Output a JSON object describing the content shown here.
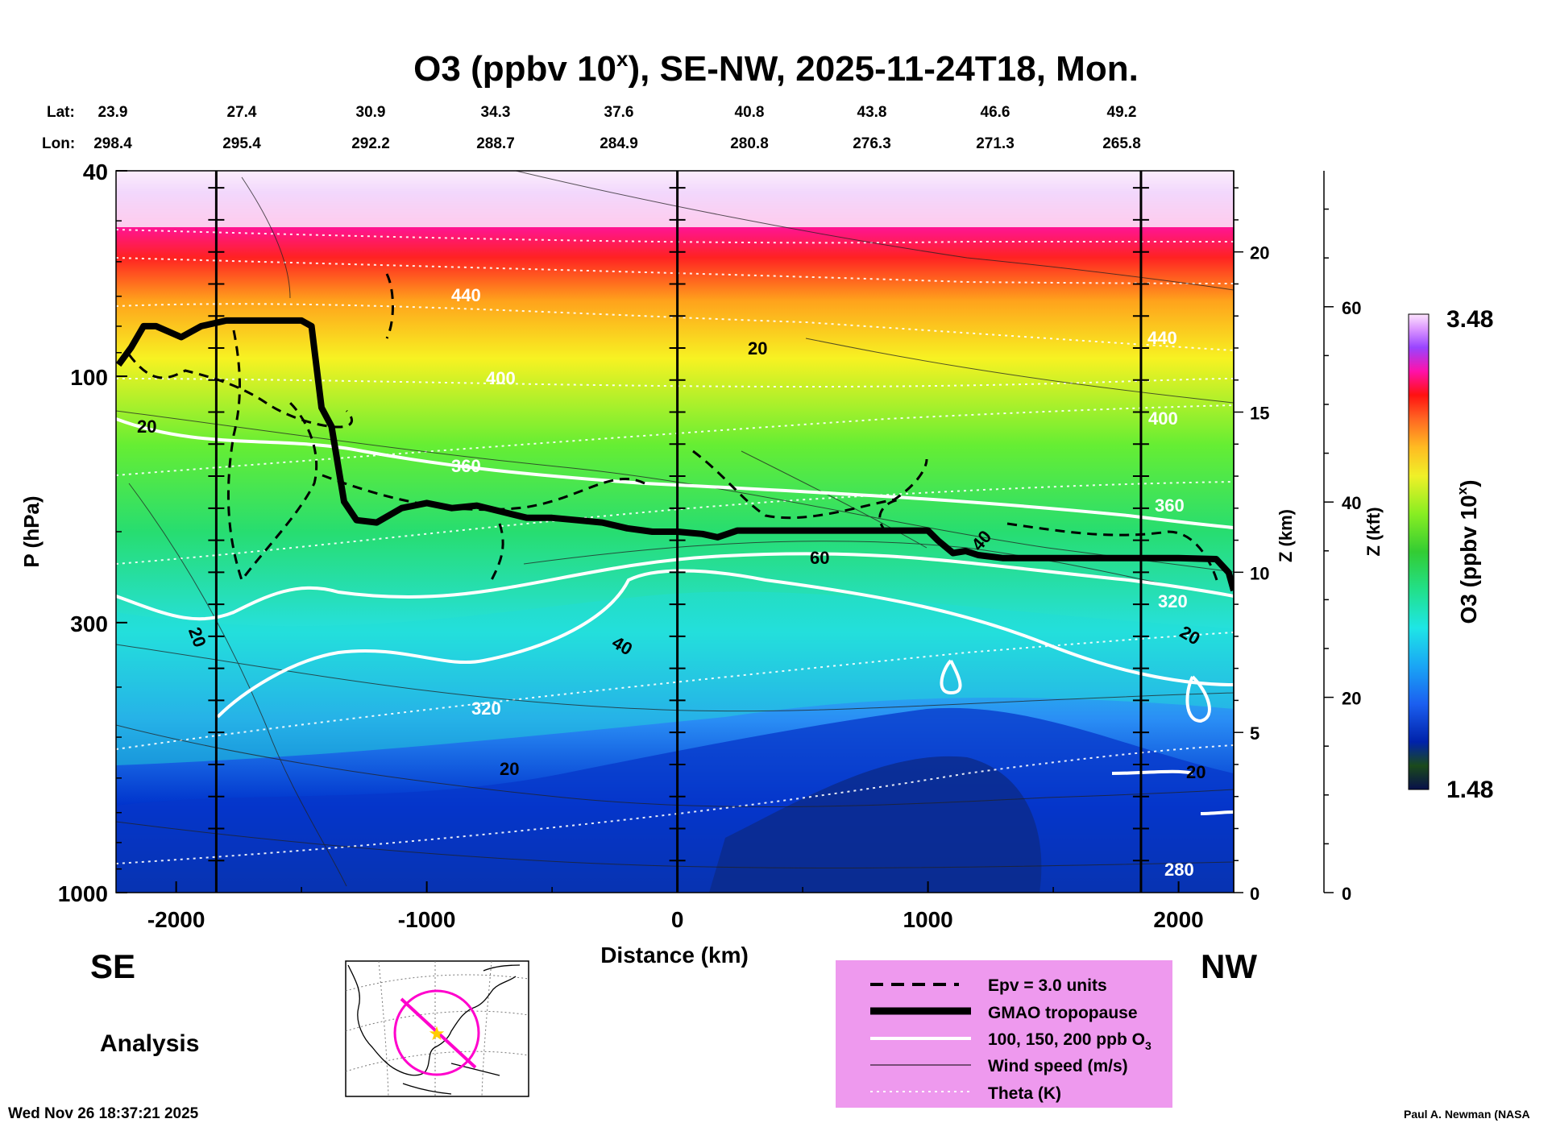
{
  "chart_data": {
    "type": "heatmap",
    "title": "O3 (ppbv 10",
    "title_sup": "x",
    "title_rest": "), SE-NW, 2025-11-24T18, Mon.",
    "lat_label": "Lat:",
    "lon_label": "Lon:",
    "lats": [
      "23.9",
      "27.4",
      "30.9",
      "34.3",
      "37.6",
      "40.8",
      "43.8",
      "46.6",
      "49.2"
    ],
    "lons": [
      "298.4",
      "295.4",
      "292.2",
      "288.7",
      "284.9",
      "280.8",
      "276.3",
      "271.3",
      "265.8"
    ],
    "xlabel": "Distance (km)",
    "ylabel": "P (hPa)",
    "x_ticks": [
      "-2000",
      "-1000",
      "0",
      "1000",
      "2000"
    ],
    "x_tick_values": [
      -2000,
      -1000,
      0,
      1000,
      2000
    ],
    "xlim": [
      -2240,
      2220
    ],
    "y_ticks": [
      "40",
      "100",
      "300",
      "1000"
    ],
    "y_tick_values": [
      40,
      100,
      300,
      1000
    ],
    "ylim": [
      1000,
      40
    ],
    "z_km_label": "Z (km)",
    "z_km_ticks": [
      "20",
      "15",
      "10",
      "5",
      "0"
    ],
    "z_km_values": [
      20,
      15,
      10,
      5,
      0
    ],
    "z_kft_label": "Z (kft)",
    "z_kft_ticks": [
      "60",
      "40",
      "20",
      "0"
    ],
    "z_kft_values": [
      60,
      40,
      20,
      0
    ],
    "colorbar_label": "O3 (ppbv 10",
    "colorbar_sup": "x",
    "colorbar_label_end": ")",
    "colorbar_min": "1.48",
    "colorbar_max": "3.48",
    "colorbar_range": [
      1.48,
      3.48
    ],
    "vertical_markers_km": [
      -1840,
      0,
      1850
    ],
    "tropopause_hPa": [
      [
        -2230,
        95
      ],
      [
        -2180,
        88
      ],
      [
        -2130,
        80
      ],
      [
        -2080,
        80
      ],
      [
        -1980,
        84
      ],
      [
        -1900,
        80
      ],
      [
        -1800,
        78
      ],
      [
        -1700,
        78
      ],
      [
        -1600,
        78
      ],
      [
        -1500,
        78
      ],
      [
        -1460,
        80
      ],
      [
        -1420,
        115
      ],
      [
        -1380,
        125
      ],
      [
        -1330,
        175
      ],
      [
        -1280,
        190
      ],
      [
        -1200,
        192
      ],
      [
        -1100,
        180
      ],
      [
        -1000,
        176
      ],
      [
        -900,
        180
      ],
      [
        -800,
        178
      ],
      [
        -700,
        183
      ],
      [
        -600,
        188
      ],
      [
        -500,
        188
      ],
      [
        -400,
        190
      ],
      [
        -300,
        192
      ],
      [
        -200,
        197
      ],
      [
        -100,
        200
      ],
      [
        0,
        200
      ],
      [
        100,
        202
      ],
      [
        160,
        205
      ],
      [
        240,
        199
      ],
      [
        400,
        199
      ],
      [
        600,
        199
      ],
      [
        800,
        199
      ],
      [
        1000,
        199
      ],
      [
        1040,
        208
      ],
      [
        1100,
        220
      ],
      [
        1150,
        218
      ],
      [
        1200,
        222
      ],
      [
        1300,
        225
      ],
      [
        1400,
        225
      ],
      [
        1600,
        225
      ],
      [
        1800,
        225
      ],
      [
        2000,
        225
      ],
      [
        2150,
        226
      ],
      [
        2200,
        240
      ],
      [
        2220,
        260
      ]
    ],
    "theta_labels": [
      "400",
      "440",
      "360",
      "320",
      "400",
      "440",
      "360",
      "320",
      "280"
    ],
    "wind_labels": [
      "20",
      "20",
      "20",
      "40",
      "60",
      "20",
      "40",
      "20",
      "20",
      "40",
      "20"
    ],
    "legend": [
      "Epv = 3.0 units",
      "GMAO tropopause",
      "100, 150, 200 ppb O",
      "Wind speed (m/s)",
      "Theta (K)"
    ],
    "legend_sub": "3",
    "left_label": "SE",
    "right_label": "NW",
    "analysis_label": "Analysis"
  },
  "timestamp": "Wed Nov 26 18:37:21 2025",
  "credit": "Paul A. Newman (NASA",
  "colors": {
    "legend_bg": "#ee99ee",
    "map_line": "#ff00cc",
    "map_star": "#ffcc00"
  }
}
